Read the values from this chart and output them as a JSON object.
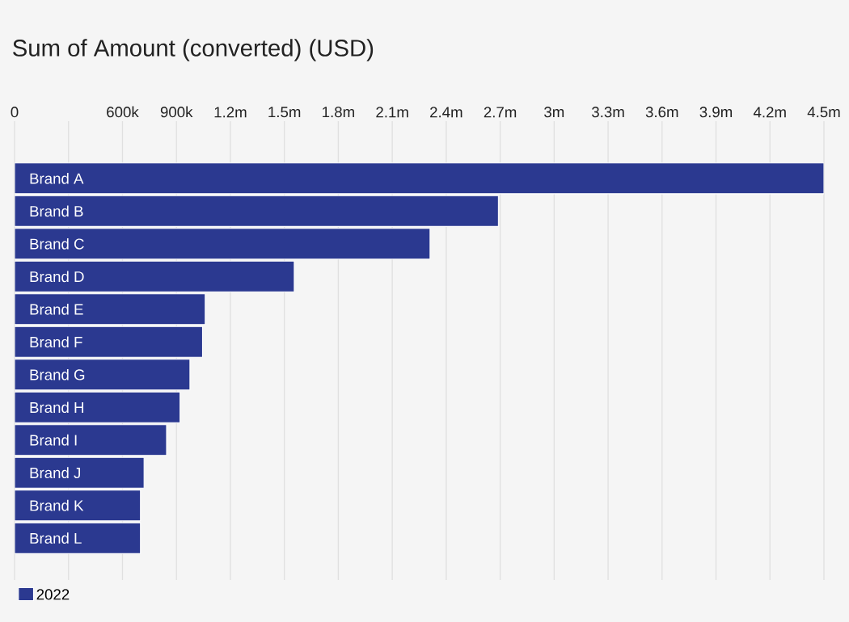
{
  "chart_data": {
    "type": "bar",
    "orientation": "horizontal",
    "title": "Sum of Amount (converted) (USD)",
    "categories": [
      "Brand A",
      "Brand B",
      "Brand C",
      "Brand D",
      "Brand E",
      "Brand F",
      "Brand G",
      "Brand H",
      "Brand I",
      "Brand J",
      "Brand K",
      "Brand L"
    ],
    "series": [
      {
        "name": "2022",
        "color": "#2b3990",
        "values": [
          4500000,
          2690000,
          2310000,
          1555000,
          1060000,
          1045000,
          975000,
          920000,
          845000,
          720000,
          700000,
          700000
        ]
      }
    ],
    "xlim": [
      0,
      4500000
    ],
    "xticks": [
      0,
      {
        "value": 300000,
        "label": null
      },
      {
        "value": 600000,
        "label": "600k"
      },
      {
        "value": 900000,
        "label": "900k"
      },
      {
        "value": 1200000,
        "label": "1.2m"
      },
      {
        "value": 1500000,
        "label": "1.5m"
      },
      {
        "value": 1800000,
        "label": "1.8m"
      },
      {
        "value": 2100000,
        "label": "2.1m"
      },
      {
        "value": 2400000,
        "label": "2.4m"
      },
      {
        "value": 2700000,
        "label": "2.7m"
      },
      {
        "value": 3000000,
        "label": "3m"
      },
      {
        "value": 3300000,
        "label": "3.3m"
      },
      {
        "value": 3600000,
        "label": "3.6m"
      },
      {
        "value": 3900000,
        "label": "3.9m"
      },
      {
        "value": 4200000,
        "label": "4.2m"
      },
      {
        "value": 4500000,
        "label": "4.5m"
      }
    ],
    "grid": "x",
    "legend": "bottom left"
  }
}
